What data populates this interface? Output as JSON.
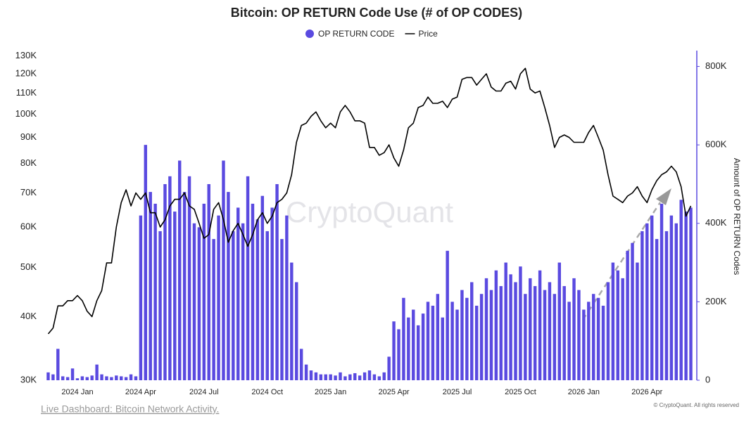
{
  "chart_data": {
    "type": "bar_line",
    "title": "Bitcoin: OP RETURN Code Use (# of OP CODES)",
    "watermark": "CryptoQuant",
    "footer_link": "Live Dashboard: Bitcoin Network Activity.",
    "copyright": "© CryptoQuant. All rights reserved",
    "y2_label": "Amount of OP RETURN Codes",
    "categories": [
      null,
      null,
      null,
      null,
      null,
      null,
      "2024 Jan",
      null,
      null,
      null,
      null,
      null,
      null,
      null,
      null,
      null,
      null,
      null,
      null,
      "2024 Apr",
      null,
      null,
      null,
      null,
      null,
      null,
      null,
      null,
      null,
      null,
      null,
      null,
      "2024 Jul",
      null,
      null,
      null,
      null,
      null,
      null,
      null,
      null,
      null,
      null,
      null,
      null,
      "2024 Oct",
      null,
      null,
      null,
      null,
      null,
      null,
      null,
      null,
      null,
      null,
      null,
      null,
      "2025 Jan",
      null,
      null,
      null,
      null,
      null,
      null,
      null,
      null,
      null,
      null,
      null,
      null,
      "2025 Apr",
      null,
      null,
      null,
      null,
      null,
      null,
      null,
      null,
      null,
      null,
      null,
      null,
      "2025 Jul",
      null,
      null,
      null,
      null,
      null,
      null,
      null,
      null,
      null,
      null,
      null,
      null,
      "2025 Oct",
      null,
      null,
      null,
      null,
      null,
      null,
      null,
      null,
      null,
      null,
      null,
      null,
      "2026 Jan",
      null,
      null,
      null,
      null,
      null,
      null,
      null,
      null,
      null,
      null,
      null,
      null,
      "2026 Apr",
      null,
      null,
      null,
      null,
      null,
      null,
      null,
      null,
      null
    ],
    "series": [
      {
        "name": "OP RETURN CODE",
        "color": "#5a4ae0",
        "axis": "y2",
        "kind": "bar",
        "values": [
          20000,
          15000,
          80000,
          10000,
          8000,
          30000,
          5000,
          10000,
          8000,
          12000,
          40000,
          15000,
          10000,
          8000,
          12000,
          10000,
          8000,
          15000,
          10000,
          420000,
          600000,
          480000,
          450000,
          380000,
          500000,
          520000,
          430000,
          560000,
          480000,
          520000,
          400000,
          390000,
          450000,
          500000,
          360000,
          420000,
          560000,
          480000,
          380000,
          440000,
          400000,
          520000,
          450000,
          410000,
          470000,
          380000,
          440000,
          500000,
          360000,
          420000,
          300000,
          250000,
          80000,
          40000,
          25000,
          20000,
          15000,
          15000,
          15000,
          12000,
          20000,
          10000,
          15000,
          18000,
          12000,
          20000,
          25000,
          15000,
          10000,
          20000,
          60000,
          150000,
          130000,
          210000,
          160000,
          180000,
          140000,
          170000,
          200000,
          190000,
          220000,
          160000,
          330000,
          200000,
          180000,
          230000,
          210000,
          250000,
          190000,
          220000,
          260000,
          230000,
          280000,
          240000,
          300000,
          270000,
          250000,
          290000,
          220000,
          260000,
          240000,
          280000,
          230000,
          250000,
          220000,
          300000,
          240000,
          200000,
          260000,
          230000,
          180000,
          200000,
          220000,
          210000,
          190000,
          250000,
          300000,
          280000,
          260000,
          330000,
          350000,
          300000,
          380000,
          400000,
          420000,
          360000,
          450000,
          380000,
          420000,
          400000,
          460000,
          430000,
          440000
        ]
      },
      {
        "name": "Price",
        "color": "#000000",
        "kind": "line",
        "values": [
          37000,
          38000,
          42000,
          42000,
          43000,
          43000,
          44000,
          43000,
          41000,
          40000,
          43000,
          45000,
          51000,
          51000,
          60000,
          67000,
          71000,
          66000,
          70000,
          68000,
          70000,
          64000,
          64000,
          60000,
          62000,
          66000,
          68000,
          68000,
          70000,
          66000,
          65000,
          61000,
          57000,
          58000,
          65000,
          67000,
          62000,
          56000,
          59000,
          61000,
          58000,
          55000,
          58000,
          62000,
          64000,
          61000,
          63000,
          67000,
          68000,
          70000,
          76000,
          88000,
          95000,
          96000,
          99000,
          101000,
          97000,
          94000,
          96000,
          94000,
          101000,
          104000,
          101000,
          97000,
          97000,
          96000,
          86000,
          86000,
          83000,
          84000,
          87000,
          82000,
          79000,
          85000,
          94000,
          96000,
          103000,
          104000,
          108000,
          105000,
          105000,
          106000,
          103000,
          107000,
          108000,
          117000,
          118000,
          118000,
          114000,
          117000,
          120000,
          113000,
          111000,
          111000,
          115000,
          116000,
          112000,
          120000,
          123000,
          112000,
          110000,
          111000,
          103000,
          95000,
          86000,
          90000,
          91000,
          90000,
          88000,
          88000,
          88000,
          92000,
          95000,
          90000,
          85000,
          76000,
          69000,
          68000,
          67000,
          69000,
          70000,
          72000,
          69000,
          67000,
          71000,
          74000,
          76000,
          77000,
          79000,
          77000,
          72000,
          63000,
          66000
        ]
      }
    ],
    "ylim": [
      30000,
      132000
    ],
    "log_y": true,
    "yticks": [
      {
        "value": 30000,
        "label": "30K"
      },
      {
        "value": 40000,
        "label": "40K"
      },
      {
        "value": 50000,
        "label": "50K"
      },
      {
        "value": 60000,
        "label": "60K"
      },
      {
        "value": 70000,
        "label": "70K"
      },
      {
        "value": 80000,
        "label": "80K"
      },
      {
        "value": 90000,
        "label": "90K"
      },
      {
        "value": 100000,
        "label": "100K"
      },
      {
        "value": 110000,
        "label": "110K"
      },
      {
        "value": 120000,
        "label": "120K"
      },
      {
        "value": 130000,
        "label": "130K"
      }
    ],
    "y2lim": [
      0,
      835000
    ],
    "y2ticks": [
      0,
      {
        "value": 200000,
        "label": "200K"
      },
      {
        "value": 400000,
        "label": "400K"
      },
      {
        "value": 600000,
        "label": "600K"
      },
      {
        "value": 800000,
        "label": "800K"
      }
    ],
    "grid": false
  }
}
